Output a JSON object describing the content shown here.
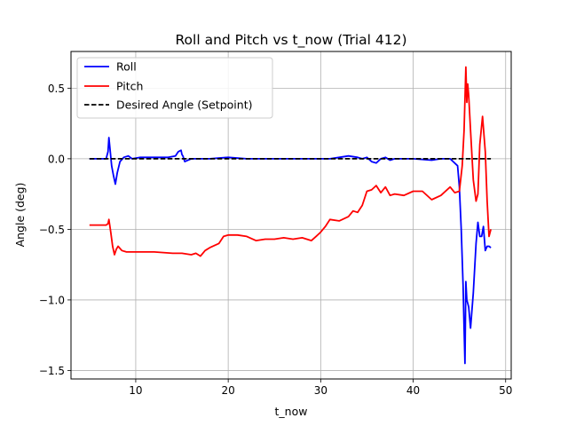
{
  "chart_data": {
    "type": "line",
    "title": "Roll and Pitch vs t_now (Trial 412)",
    "xlabel": "t_now",
    "ylabel": "Angle (deg)",
    "xlim": [
      3.0,
      50.6
    ],
    "ylim": [
      -1.56,
      0.76
    ],
    "xticks": [
      10,
      20,
      30,
      40,
      50
    ],
    "xtick_labels": [
      "10",
      "20",
      "30",
      "40",
      "50"
    ],
    "yticks": [
      0.5,
      0.0,
      -0.5,
      -1.0,
      -1.5
    ],
    "ytick_labels": [
      "0.5",
      "0.0",
      "−0.5",
      "−1.0",
      "−1.5"
    ],
    "grid": true,
    "legend_position": "upper-left",
    "series": [
      {
        "name": "Roll",
        "color": "#0000ff",
        "style": "solid",
        "x": [
          5.0,
          6.8,
          7.0,
          7.1,
          7.2,
          7.4,
          7.6,
          7.8,
          8.0,
          8.3,
          8.7,
          9.2,
          9.6,
          10.5,
          12.0,
          13.5,
          14.3,
          14.6,
          14.9,
          15.0,
          15.1,
          15.3,
          16.0,
          18.0,
          20.0,
          22.0,
          24.0,
          26.0,
          28.0,
          30.0,
          31.0,
          32.0,
          33.0,
          34.0,
          34.5,
          35.0,
          35.5,
          36.0,
          36.5,
          37.0,
          37.5,
          38.0,
          40.0,
          42.0,
          43.0,
          44.0,
          44.8,
          45.0,
          45.2,
          45.4,
          45.5,
          45.6,
          45.7,
          45.8,
          46.0,
          46.2,
          46.5,
          46.8,
          47.0,
          47.2,
          47.4,
          47.6,
          47.8,
          48.0,
          48.2,
          48.4
        ],
        "y": [
          0.0,
          0.0,
          0.05,
          0.15,
          0.08,
          -0.05,
          -0.12,
          -0.18,
          -0.1,
          -0.02,
          0.01,
          0.02,
          0.0,
          0.01,
          0.01,
          0.01,
          0.02,
          0.05,
          0.06,
          0.03,
          0.02,
          -0.02,
          0.0,
          0.0,
          0.01,
          0.0,
          0.0,
          0.0,
          0.0,
          0.0,
          0.0,
          0.01,
          0.02,
          0.01,
          0.0,
          0.01,
          -0.02,
          -0.03,
          0.0,
          0.01,
          -0.01,
          0.0,
          0.0,
          -0.01,
          0.0,
          0.0,
          -0.05,
          -0.2,
          -0.5,
          -0.9,
          -1.2,
          -1.45,
          -0.87,
          -1.0,
          -1.05,
          -1.2,
          -0.95,
          -0.6,
          -0.45,
          -0.55,
          -0.55,
          -0.48,
          -0.65,
          -0.62,
          -0.62,
          -0.63
        ]
      },
      {
        "name": "Pitch",
        "color": "#ff0000",
        "style": "solid",
        "x": [
          5.0,
          6.8,
          7.0,
          7.1,
          7.3,
          7.5,
          7.7,
          7.9,
          8.1,
          8.5,
          9.0,
          10.0,
          12.0,
          14.0,
          15.0,
          16.0,
          16.5,
          17.0,
          17.5,
          18.0,
          19.0,
          19.5,
          20.0,
          21.0,
          22.0,
          23.0,
          24.0,
          25.0,
          26.0,
          27.0,
          28.0,
          28.5,
          29.0,
          29.5,
          30.0,
          30.5,
          31.0,
          32.0,
          33.0,
          33.5,
          34.0,
          34.5,
          35.0,
          35.5,
          36.0,
          36.5,
          37.0,
          37.5,
          38.0,
          39.0,
          40.0,
          41.0,
          42.0,
          43.0,
          44.0,
          44.5,
          45.0,
          45.3,
          45.5,
          45.7,
          45.8,
          45.9,
          46.0,
          46.2,
          46.5,
          46.8,
          47.0,
          47.2,
          47.5,
          47.8,
          48.0,
          48.2,
          48.4
        ],
        "y": [
          -0.47,
          -0.47,
          -0.46,
          -0.43,
          -0.52,
          -0.62,
          -0.68,
          -0.64,
          -0.62,
          -0.65,
          -0.66,
          -0.66,
          -0.66,
          -0.67,
          -0.67,
          -0.68,
          -0.67,
          -0.69,
          -0.65,
          -0.63,
          -0.6,
          -0.55,
          -0.54,
          -0.54,
          -0.55,
          -0.58,
          -0.57,
          -0.57,
          -0.56,
          -0.57,
          -0.56,
          -0.57,
          -0.58,
          -0.55,
          -0.52,
          -0.48,
          -0.43,
          -0.44,
          -0.41,
          -0.37,
          -0.38,
          -0.33,
          -0.23,
          -0.22,
          -0.19,
          -0.24,
          -0.2,
          -0.26,
          -0.25,
          -0.26,
          -0.23,
          -0.23,
          -0.29,
          -0.26,
          -0.2,
          -0.24,
          -0.23,
          -0.05,
          0.2,
          0.65,
          0.4,
          0.53,
          0.45,
          0.2,
          -0.15,
          -0.3,
          -0.25,
          0.1,
          0.3,
          0.05,
          -0.3,
          -0.55,
          -0.5
        ]
      },
      {
        "name": "Desired Angle (Setpoint)",
        "color": "#000000",
        "style": "dashed",
        "x": [
          5.0,
          48.4
        ],
        "y": [
          0.0,
          0.0
        ]
      }
    ]
  }
}
